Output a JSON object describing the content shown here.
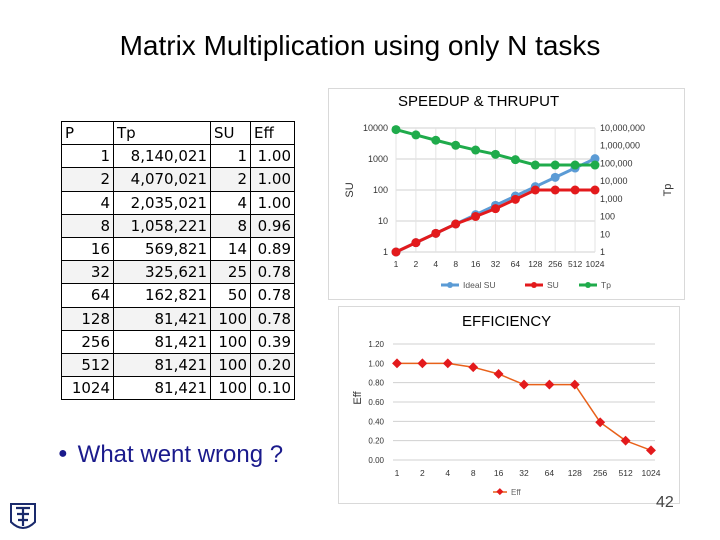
{
  "title": "Matrix Multiplication using only N tasks",
  "table": {
    "headers": [
      "P",
      "Tp",
      "SU",
      "Eff"
    ],
    "rows": [
      [
        "1",
        "8,140,021",
        "1",
        "1.00"
      ],
      [
        "2",
        "4,070,021",
        "2",
        "1.00"
      ],
      [
        "4",
        "2,035,021",
        "4",
        "1.00"
      ],
      [
        "8",
        "1,058,221",
        "8",
        "0.96"
      ],
      [
        "16",
        "569,821",
        "14",
        "0.89"
      ],
      [
        "32",
        "325,621",
        "25",
        "0.78"
      ],
      [
        "64",
        "162,821",
        "50",
        "0.78"
      ],
      [
        "128",
        "81,421",
        "100",
        "0.78"
      ],
      [
        "256",
        "81,421",
        "100",
        "0.39"
      ],
      [
        "512",
        "81,421",
        "100",
        "0.20"
      ],
      [
        "1024",
        "81,421",
        "100",
        "0.10"
      ]
    ]
  },
  "speedup_label": "SPEEDUP & THRUPUT",
  "efficiency_label": "EFFICIENCY",
  "bullet": "What went wrong ?",
  "page_number": "42",
  "chart_data": [
    {
      "type": "line",
      "title": "SPEEDUP & THRUPUT",
      "categories": [
        "1",
        "2",
        "4",
        "8",
        "16",
        "32",
        "64",
        "128",
        "256",
        "512",
        "1024"
      ],
      "ylabel": "SU",
      "y2label": "Tp",
      "y_scale": "log",
      "ylim": [
        1,
        10000
      ],
      "y_ticks": [
        "10000",
        "1000",
        "100",
        "10",
        "1"
      ],
      "y2_scale": "log",
      "y2lim": [
        1,
        10000000
      ],
      "y2_ticks": [
        "10,000,000",
        "1,000,000",
        "100,000",
        "10,000",
        "1,000",
        "100",
        "10",
        "1"
      ],
      "grid": true,
      "legend": "bottom",
      "series": [
        {
          "name": "Ideal SU",
          "axis": "left",
          "color": "#5b9bd5",
          "values": [
            1,
            2,
            4,
            8,
            16,
            32,
            64,
            128,
            256,
            512,
            1024
          ]
        },
        {
          "name": "SU",
          "axis": "left",
          "color": "#e31a1c",
          "values": [
            1,
            2,
            4,
            8,
            14,
            25,
            50,
            100,
            100,
            100,
            100
          ]
        },
        {
          "name": "Tp",
          "axis": "right",
          "color": "#1fab4b",
          "values": [
            8140021,
            4070021,
            2035021,
            1058221,
            569821,
            325621,
            162821,
            81421,
            81421,
            81421,
            81421
          ]
        }
      ]
    },
    {
      "type": "line",
      "title": "EFFICIENCY",
      "categories": [
        "1",
        "2",
        "4",
        "8",
        "16",
        "32",
        "64",
        "128",
        "256",
        "512",
        "1024"
      ],
      "ylabel": "Eff",
      "ylim": [
        0,
        1.2
      ],
      "y_ticks": [
        "1.20",
        "1.00",
        "0.80",
        "0.60",
        "0.40",
        "0.20",
        "0.00"
      ],
      "grid": true,
      "legend": "bottom",
      "series": [
        {
          "name": "Eff",
          "color": "#e8611a",
          "values": [
            1.0,
            1.0,
            1.0,
            0.96,
            0.89,
            0.78,
            0.78,
            0.78,
            0.39,
            0.2,
            0.1
          ]
        }
      ]
    }
  ]
}
